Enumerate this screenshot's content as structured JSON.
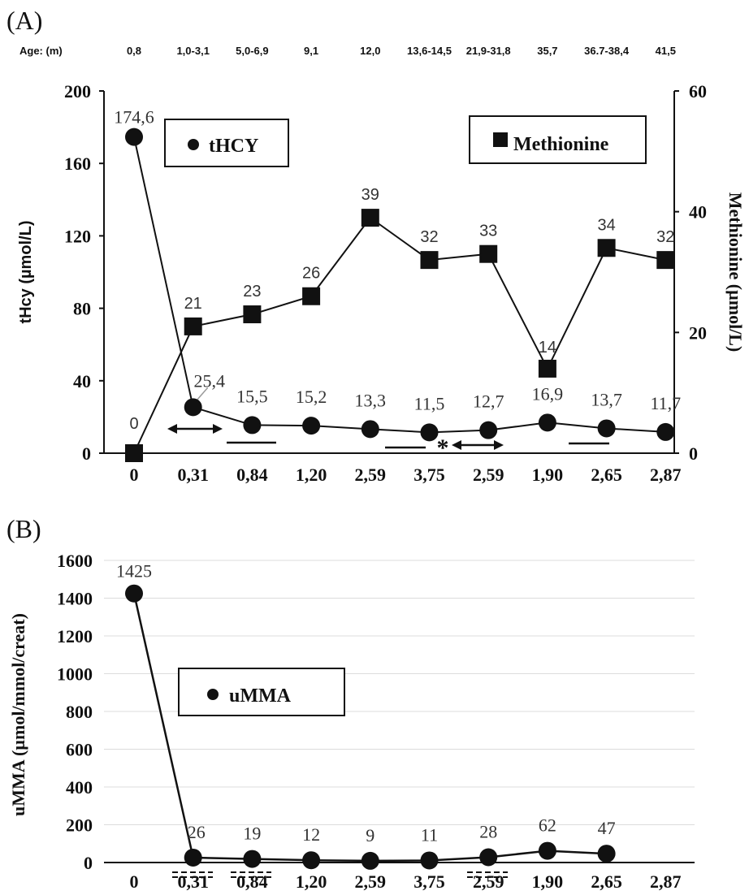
{
  "chart_data": [
    {
      "panel_label": "(A)",
      "type": "line",
      "categories": [
        "0",
        "0,31",
        "0,84",
        "1,20",
        "2,59",
        "3,75",
        "2,59",
        "1,90",
        "2,65",
        "2,87"
      ],
      "age_row": {
        "label": "Age: (m)",
        "values": [
          "0,8",
          "1,0-3,1",
          "5,0-6,9",
          "9,1",
          "12,0",
          "13,6-14,5",
          "21,9-31,8",
          "35,7",
          "36.7-38,4",
          "41,5"
        ]
      },
      "ylabel": "tHcy (µmol/L)",
      "ylim": [
        0,
        200
      ],
      "yticks": [
        "0",
        "40",
        "80",
        "120",
        "160",
        "200"
      ],
      "y2label": "Methionine (µmol/L)",
      "y2lim": [
        0,
        60
      ],
      "y2ticks": [
        "0",
        "20",
        "40",
        "60"
      ],
      "series": [
        {
          "name": "tHCY",
          "axis": "left",
          "marker": "circle",
          "values": [
            174.6,
            25.4,
            15.5,
            15.2,
            13.3,
            11.5,
            12.7,
            16.9,
            13.7,
            11.7
          ],
          "labels": [
            "174,6",
            "25,4",
            "15,5",
            "15,2",
            "13,3",
            "11,5",
            "12,7",
            "16,9",
            "13,7",
            "11,7"
          ]
        },
        {
          "name": "Methionine",
          "axis": "right",
          "marker": "square",
          "values": [
            0,
            21,
            23,
            26,
            39,
            32,
            33,
            14,
            34,
            32
          ],
          "labels": [
            "0",
            "21",
            "23",
            "26",
            "39",
            "32",
            "33",
            "14",
            "34",
            "32"
          ]
        }
      ],
      "annotations": {
        "asterisk": "*"
      },
      "legend": [
        "top-left: tHCY",
        "top-right: Methionine"
      ]
    },
    {
      "panel_label": "(B)",
      "type": "line",
      "categories": [
        "0",
        "0,31",
        "0,84",
        "1,20",
        "2,59",
        "3,75",
        "2,59",
        "1,90",
        "2,65",
        "2,87"
      ],
      "ylabel": "uMMA (µmol/mmol/creat)",
      "ylim": [
        0,
        1600
      ],
      "yticks": [
        "0",
        "200",
        "400",
        "600",
        "800",
        "1000",
        "1200",
        "1400",
        "1600"
      ],
      "grid": true,
      "series": [
        {
          "name": "uMMA",
          "axis": "left",
          "marker": "circle",
          "values": [
            1425,
            26,
            19,
            12,
            9,
            11,
            28,
            62,
            47,
            null
          ],
          "labels": [
            "1425",
            "26",
            "19",
            "12",
            "9",
            "11",
            "28",
            "62",
            "47",
            ""
          ]
        }
      ],
      "legend": [
        "center-left: uMMA"
      ]
    }
  ]
}
